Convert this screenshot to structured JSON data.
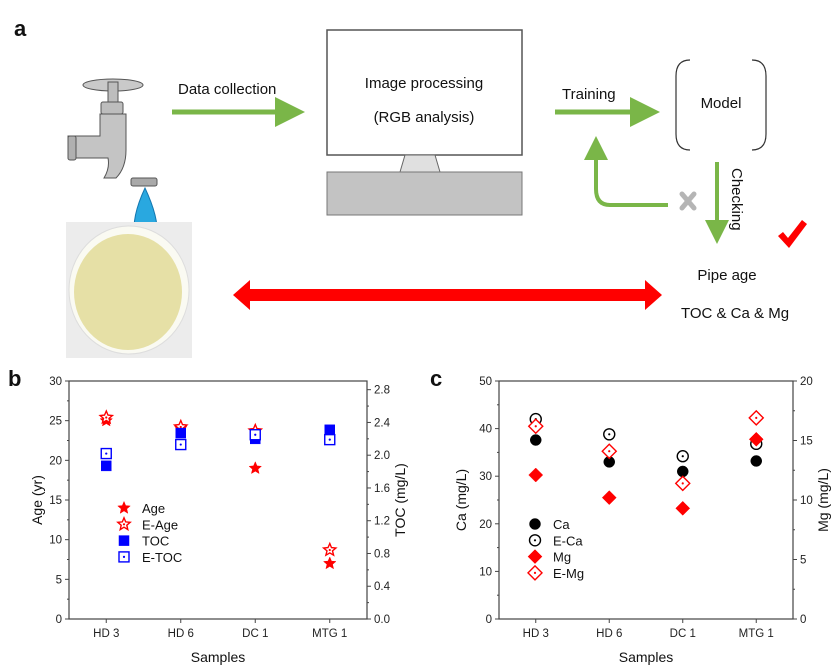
{
  "diagram": {
    "panel_label": "a",
    "data_collection": "Data collection",
    "image_processing": "Image processing",
    "rgb_analysis": "(RGB analysis)",
    "training": "Training",
    "model": "Model",
    "checking": "Checking",
    "pipe_age": "Pipe age",
    "outputs": "TOC & Ca & Mg",
    "colors": {
      "arrow_green": "#7ab648",
      "arrow_red": "#ff0000",
      "drop_blue": "#29a8e0"
    }
  },
  "chart_data": [
    {
      "panel_label": "b",
      "type": "scatter",
      "categories": [
        "HD 3",
        "HD 6",
        "DC 1",
        "MTG 1"
      ],
      "xlabel": "Samples",
      "ylabel": "Age (yr)",
      "ylabel_right": "TOC (mg/L)",
      "ylim": [
        0,
        30
      ],
      "yticks": [
        0,
        5,
        10,
        15,
        20,
        25,
        30
      ],
      "ylim_right": [
        0,
        2.906
      ],
      "yticks_right": [
        "0.0",
        "0.4",
        "0.8",
        "1.2",
        "1.6",
        "2.0",
        "2.4",
        "2.8"
      ],
      "legend_position": "center-left",
      "series": [
        {
          "name": "Age",
          "axis": "left",
          "marker": "star",
          "filled": true,
          "color": "#ff0000",
          "values": [
            25.0,
            24.0,
            19.0,
            7.0
          ]
        },
        {
          "name": "E-Age",
          "axis": "left",
          "marker": "star",
          "filled": false,
          "color": "#ff0000",
          "values": [
            25.4,
            24.2,
            23.7,
            8.7
          ]
        },
        {
          "name": "TOC",
          "axis": "right",
          "marker": "square",
          "filled": true,
          "color": "#0000ff",
          "values": [
            1.87,
            2.27,
            2.2,
            2.31
          ]
        },
        {
          "name": "E-TOC",
          "axis": "right",
          "marker": "square",
          "filled": false,
          "color": "#0000ff",
          "values": [
            2.02,
            2.13,
            2.25,
            2.19
          ]
        }
      ]
    },
    {
      "panel_label": "c",
      "type": "scatter",
      "categories": [
        "HD 3",
        "HD 6",
        "DC 1",
        "MTG 1"
      ],
      "xlabel": "Samples",
      "ylabel": "Ca (mg/L)",
      "ylabel_right": "Mg (mg/L)",
      "ylim": [
        0,
        50
      ],
      "yticks": [
        0,
        10,
        20,
        30,
        40,
        50
      ],
      "ylim_right": [
        0,
        20
      ],
      "yticks_right": [
        "0",
        "5",
        "10",
        "15",
        "20"
      ],
      "legend_position": "center-left",
      "series": [
        {
          "name": "Ca",
          "axis": "left",
          "marker": "circle",
          "filled": true,
          "color": "#000000",
          "values": [
            37.6,
            33.0,
            31.0,
            33.2
          ]
        },
        {
          "name": "E-Ca",
          "axis": "left",
          "marker": "circle",
          "filled": false,
          "color": "#000000",
          "values": [
            42.0,
            38.8,
            34.2,
            36.8
          ]
        },
        {
          "name": "Mg",
          "axis": "right",
          "marker": "diamond",
          "filled": true,
          "color": "#ff0000",
          "values": [
            12.1,
            10.2,
            9.3,
            15.1
          ]
        },
        {
          "name": "E-Mg",
          "axis": "right",
          "marker": "diamond",
          "filled": false,
          "color": "#ff0000",
          "values": [
            16.2,
            14.1,
            11.4,
            16.9
          ]
        }
      ]
    }
  ]
}
